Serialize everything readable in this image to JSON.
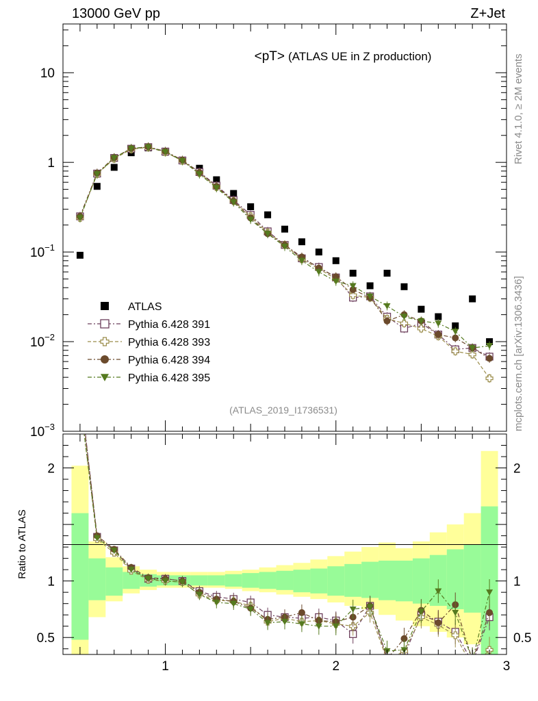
{
  "header": {
    "left": "13000 GeV pp",
    "right": "Z+Jet"
  },
  "side_labels": {
    "rivet": "Rivet 4.1.0, ≥ 2M events",
    "mcplots": "mcplots.cern.ch [arXiv:1306.3436]"
  },
  "chart_data": {
    "type": "scatter",
    "title": "<pT>",
    "subtitle": "(ATLAS UE in Z production)",
    "analysis_id": "(ATLAS_2019_I1736531)",
    "xlim": [
      0.4,
      3.0
    ],
    "x_ticks": [
      {
        "value": 1,
        "label": "1"
      },
      {
        "value": 2,
        "label": "2"
      },
      {
        "value": 3,
        "label": "3"
      }
    ],
    "main": {
      "yscale": "log",
      "ylim": [
        0.001,
        35
      ],
      "y_ticks": [
        {
          "value": 0.001,
          "base": "10",
          "exp": "−3"
        },
        {
          "value": 0.01,
          "base": "10",
          "exp": "−2"
        },
        {
          "value": 0.1,
          "base": "10",
          "exp": "−1"
        },
        {
          "value": 1,
          "base": "1",
          "exp": ""
        },
        {
          "value": 10,
          "base": "10",
          "exp": ""
        }
      ]
    },
    "ratio": {
      "ylabel": "Ratio to ATLAS",
      "ylim": [
        0.35,
        2.3
      ],
      "y_ticks": [
        {
          "value": 0.5,
          "label": "0.5"
        },
        {
          "value": 1,
          "label": "1"
        },
        {
          "value": 2,
          "label": "2"
        }
      ],
      "bin_edges": [
        0.45,
        0.55,
        0.65,
        0.75,
        0.85,
        0.95,
        1.05,
        1.15,
        1.25,
        1.35,
        1.45,
        1.55,
        1.65,
        1.75,
        1.85,
        1.95,
        2.05,
        2.15,
        2.25,
        2.35,
        2.45,
        2.55,
        2.65,
        2.75,
        2.85,
        2.95
      ],
      "green_band": [
        [
          0.48,
          1.6
        ],
        [
          0.83,
          1.2
        ],
        [
          0.87,
          1.12
        ],
        [
          0.93,
          1.08
        ],
        [
          0.95,
          1.06
        ],
        [
          0.96,
          1.05
        ],
        [
          0.96,
          1.05
        ],
        [
          0.96,
          1.05
        ],
        [
          0.96,
          1.05
        ],
        [
          0.95,
          1.06
        ],
        [
          0.94,
          1.07
        ],
        [
          0.93,
          1.08
        ],
        [
          0.92,
          1.09
        ],
        [
          0.9,
          1.1
        ],
        [
          0.89,
          1.11
        ],
        [
          0.87,
          1.13
        ],
        [
          0.86,
          1.15
        ],
        [
          0.85,
          1.17
        ],
        [
          0.83,
          1.18
        ],
        [
          0.82,
          1.18
        ],
        [
          0.8,
          1.2
        ],
        [
          0.78,
          1.23
        ],
        [
          0.75,
          1.28
        ],
        [
          0.72,
          1.32
        ],
        [
          0.35,
          1.66
        ]
      ],
      "yellow_band": [
        [
          0.35,
          2.02
        ],
        [
          0.68,
          1.35
        ],
        [
          0.82,
          1.21
        ],
        [
          0.89,
          1.13
        ],
        [
          0.92,
          1.1
        ],
        [
          0.94,
          1.08
        ],
        [
          0.94,
          1.08
        ],
        [
          0.94,
          1.08
        ],
        [
          0.94,
          1.08
        ],
        [
          0.93,
          1.09
        ],
        [
          0.91,
          1.1
        ],
        [
          0.9,
          1.12
        ],
        [
          0.88,
          1.14
        ],
        [
          0.86,
          1.16
        ],
        [
          0.84,
          1.19
        ],
        [
          0.81,
          1.22
        ],
        [
          0.78,
          1.26
        ],
        [
          0.75,
          1.3
        ],
        [
          0.7,
          1.34
        ],
        [
          0.65,
          1.29
        ],
        [
          0.6,
          1.35
        ],
        [
          0.55,
          1.43
        ],
        [
          0.5,
          1.5
        ],
        [
          0.44,
          1.6
        ],
        [
          0.35,
          2.15
        ]
      ]
    },
    "x": [
      0.5,
      0.6,
      0.7,
      0.8,
      0.9,
      1.0,
      1.1,
      1.2,
      1.3,
      1.4,
      1.5,
      1.6,
      1.7,
      1.8,
      1.9,
      2.0,
      2.1,
      2.2,
      2.3,
      2.4,
      2.5,
      2.6,
      2.7,
      2.8,
      2.9
    ],
    "series": [
      {
        "name": "ATLAS",
        "color": "#000000",
        "marker": "square-filled",
        "line": "none",
        "values": [
          0.092,
          0.54,
          0.88,
          1.28,
          1.45,
          1.3,
          1.05,
          0.86,
          0.64,
          0.45,
          0.32,
          0.26,
          0.18,
          0.13,
          0.1,
          0.08,
          0.058,
          0.042,
          0.058,
          0.041,
          0.023,
          0.019,
          0.015,
          0.03,
          0.01
        ]
      },
      {
        "name": "Pythia 6.428 391",
        "color": "#6b3d5a",
        "marker": "square-open",
        "line": "dashdot",
        "values": [
          0.25,
          0.75,
          1.12,
          1.42,
          1.48,
          1.32,
          1.05,
          0.78,
          0.55,
          0.38,
          0.26,
          0.17,
          0.12,
          0.085,
          0.068,
          0.052,
          0.031,
          0.032,
          0.019,
          0.014,
          0.016,
          0.012,
          0.0082,
          0.0085,
          0.0068
        ],
        "ratio": [
          2.72,
          1.39,
          1.27,
          1.11,
          1.02,
          1.02,
          1.0,
          0.91,
          0.86,
          0.84,
          0.81,
          0.7,
          0.68,
          0.67,
          0.68,
          0.65,
          0.53,
          0.78,
          0.32,
          0.34,
          0.7,
          0.64,
          0.55,
          0.28,
          0.68
        ]
      },
      {
        "name": "Pythia 6.428 393",
        "color": "#9a8c4a",
        "marker": "cross-open",
        "line": "dashed",
        "values": [
          0.24,
          0.74,
          1.1,
          1.4,
          1.47,
          1.3,
          1.04,
          0.76,
          0.53,
          0.37,
          0.25,
          0.165,
          0.12,
          0.083,
          0.065,
          0.05,
          0.033,
          0.031,
          0.018,
          0.016,
          0.014,
          0.0115,
          0.0078,
          0.0072,
          0.0039
        ],
        "ratio": [
          2.6,
          1.37,
          1.25,
          1.09,
          1.01,
          1.0,
          0.99,
          0.88,
          0.83,
          0.82,
          0.78,
          0.64,
          0.67,
          0.64,
          0.65,
          0.62,
          0.6,
          0.72,
          0.3,
          0.38,
          0.68,
          0.61,
          0.52,
          0.24,
          0.39
        ]
      },
      {
        "name": "Pythia 6.428 394",
        "color": "#6b4a2c",
        "marker": "circle-filled",
        "line": "dashdot",
        "values": [
          0.25,
          0.76,
          1.13,
          1.43,
          1.49,
          1.33,
          1.06,
          0.77,
          0.54,
          0.37,
          0.24,
          0.16,
          0.12,
          0.088,
          0.066,
          0.053,
          0.038,
          0.031,
          0.017,
          0.02,
          0.017,
          0.012,
          0.011,
          0.0085,
          0.0065
        ],
        "ratio": [
          2.7,
          1.4,
          1.28,
          1.12,
          1.03,
          1.02,
          1.0,
          0.9,
          0.84,
          0.82,
          0.76,
          0.66,
          0.68,
          0.72,
          0.65,
          0.64,
          0.68,
          0.78,
          0.31,
          0.49,
          0.74,
          0.63,
          0.79,
          0.3,
          0.72
        ]
      },
      {
        "name": "Pythia 6.428 395",
        "color": "#557a1f",
        "marker": "triangle-down-filled",
        "line": "dashdot",
        "values": [
          0.24,
          0.74,
          1.12,
          1.43,
          1.48,
          1.31,
          1.04,
          0.74,
          0.52,
          0.36,
          0.23,
          0.16,
          0.115,
          0.08,
          0.06,
          0.047,
          0.042,
          0.032,
          0.025,
          0.019,
          0.017,
          0.016,
          0.013,
          0.0085,
          0.009
        ],
        "ratio": [
          2.6,
          1.38,
          1.27,
          1.1,
          1.02,
          1.0,
          0.99,
          0.88,
          0.81,
          0.8,
          0.75,
          0.63,
          0.64,
          0.62,
          0.6,
          0.6,
          0.75,
          0.77,
          0.38,
          0.39,
          0.73,
          0.91,
          0.72,
          0.3,
          0.9
        ]
      }
    ]
  }
}
